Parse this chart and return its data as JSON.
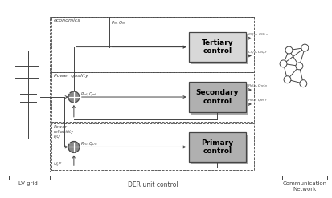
{
  "fig_width": 4.13,
  "fig_height": 2.47,
  "dpi": 100,
  "bg_color": "#ffffff",
  "lv_grid_label": "LV grid",
  "der_label": "DER unit control",
  "comm_label": "Communication\nNetwork",
  "tertiary_label": "Tertiary\ncontrol",
  "secondary_label": "Secondary\ncontrol",
  "primary_label": "Primary\ncontrol",
  "economics_label": "economics",
  "power_quality_label": "Power quality",
  "power_reliability_label": "Power\nreliability\nP,Q",
  "uf_label": "U,F",
  "line_color": "#444444",
  "box_fill_tertiary": "#d8d8d8",
  "box_fill_secondary": "#b0b0b0",
  "box_fill_primary": "#b0b0b0",
  "sj_fill": "#888888"
}
